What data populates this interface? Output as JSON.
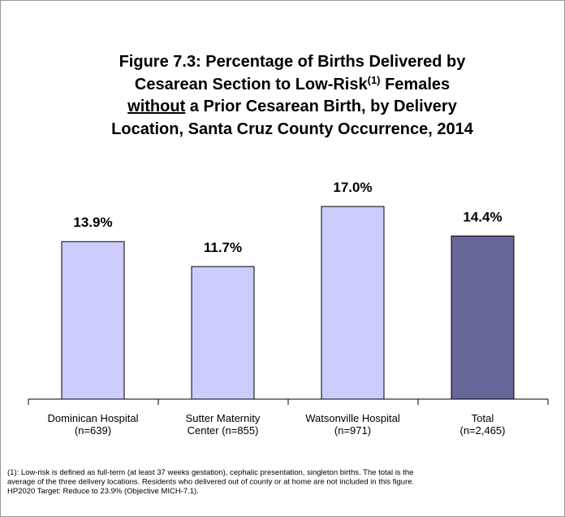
{
  "chart_data": {
    "type": "bar",
    "title_lines": [
      [
        "Figure 7.3:  Percentage of Births Delivered by"
      ],
      [
        "Cesarean Section to Low-Risk",
        "(1)",
        " Females"
      ],
      [
        "without",
        " a Prior Cesarean Birth, by Delivery"
      ],
      [
        "Location, Santa Cruz County Occurrence, 2014"
      ]
    ],
    "categories": [
      [
        "Dominican Hospital",
        "(n=639)"
      ],
      [
        "Sutter Maternity",
        "Center (n=855)"
      ],
      [
        "Watsonville Hospital",
        "(n=971)"
      ],
      [
        "Total",
        "(n=2,465)"
      ]
    ],
    "values": [
      13.9,
      11.7,
      17.0,
      14.4
    ],
    "value_labels": [
      "13.9%",
      "11.7%",
      "17.0%",
      "14.4%"
    ],
    "colors": [
      "#ccccff",
      "#ccccff",
      "#ccccff",
      "#666699"
    ],
    "footnote": [
      "(1): Low-risk is defined as full-term (at least 37 weeks gestation), cephalic  presentation, singleton births.  The total is the",
      "average of the three delivery locations.  Residents who delivered out of county or at home are not included in this figure.",
      "HP2020 Target:  Reduce to 23.9% (Objective MICH-7.1)."
    ]
  }
}
